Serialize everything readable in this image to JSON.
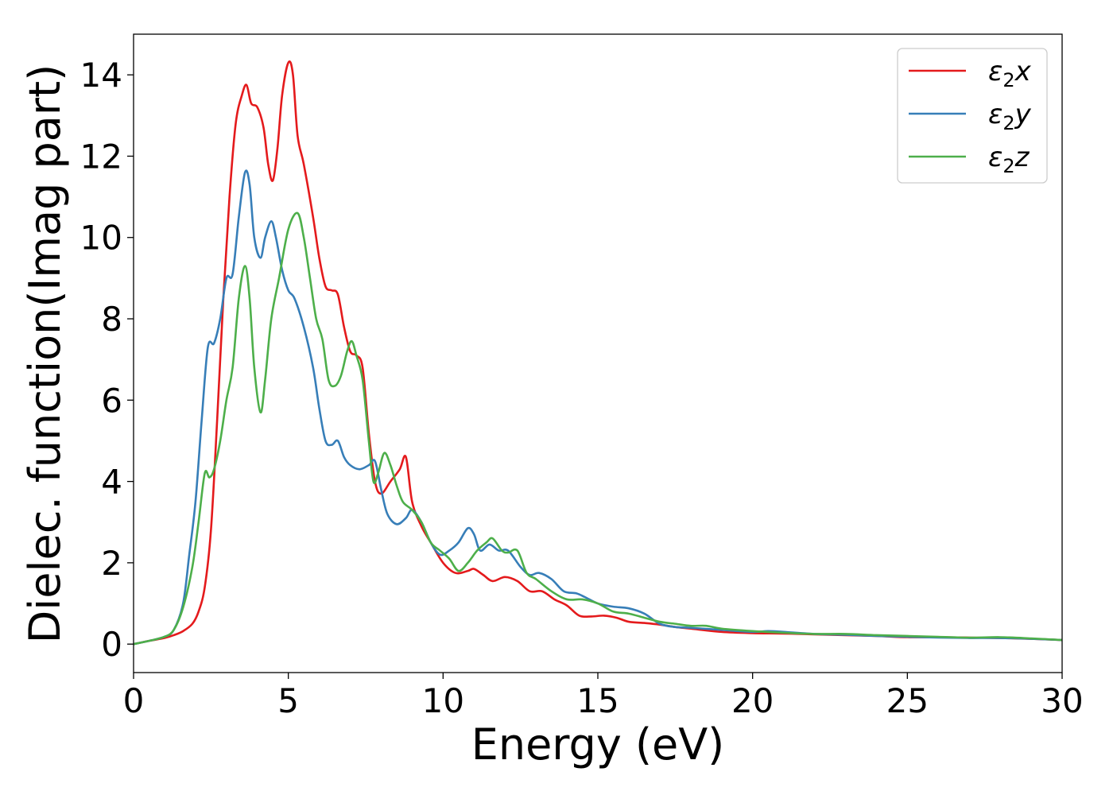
{
  "chart_data": {
    "type": "line",
    "xlabel": "Energy (eV)",
    "ylabel": "Dielec. function(Imag part)",
    "xlim": [
      0,
      30
    ],
    "ylim": [
      -0.7,
      15
    ],
    "xticks": [
      0,
      5,
      10,
      15,
      20,
      25,
      30
    ],
    "yticks": [
      0,
      2,
      4,
      6,
      8,
      10,
      12,
      14
    ],
    "grid": false,
    "legend_position": "top-right",
    "series": [
      {
        "name": "ε₂x",
        "legend": {
          "base": "ε",
          "sub": "2",
          "suffix": "x"
        },
        "color": "#e41a1c",
        "x": [
          0,
          0.5,
          1,
          1.3,
          1.6,
          1.9,
          2.1,
          2.3,
          2.5,
          2.7,
          2.9,
          3.1,
          3.3,
          3.5,
          3.65,
          3.8,
          4.0,
          4.2,
          4.35,
          4.5,
          4.65,
          4.8,
          5.0,
          5.15,
          5.3,
          5.5,
          5.8,
          6.0,
          6.2,
          6.4,
          6.6,
          6.8,
          7.0,
          7.2,
          7.4,
          7.6,
          7.8,
          8.0,
          8.3,
          8.6,
          8.8,
          9.0,
          9.3,
          9.6,
          10.0,
          10.4,
          10.8,
          11.0,
          11.3,
          11.6,
          12.0,
          12.4,
          12.8,
          13.2,
          13.6,
          14.0,
          14.4,
          14.8,
          15.2,
          15.6,
          16.0,
          16.5,
          17.0,
          17.5,
          18.0,
          19.0,
          20.0,
          21.0,
          22.0,
          23.0,
          24.0,
          25.0,
          26.0,
          27.0,
          28.0,
          29.0,
          30.0
        ],
        "y": [
          0.0,
          0.08,
          0.15,
          0.22,
          0.32,
          0.5,
          0.8,
          1.4,
          2.8,
          5.5,
          8.5,
          11.0,
          12.8,
          13.5,
          13.75,
          13.3,
          13.2,
          12.7,
          11.8,
          11.4,
          12.2,
          13.5,
          14.3,
          14.0,
          12.5,
          11.8,
          10.5,
          9.5,
          8.8,
          8.7,
          8.6,
          7.8,
          7.2,
          7.1,
          6.8,
          5.2,
          4.0,
          3.7,
          4.0,
          4.3,
          4.6,
          3.5,
          2.9,
          2.5,
          2.0,
          1.75,
          1.8,
          1.85,
          1.7,
          1.55,
          1.65,
          1.55,
          1.3,
          1.3,
          1.1,
          0.95,
          0.7,
          0.68,
          0.7,
          0.65,
          0.55,
          0.52,
          0.48,
          0.42,
          0.38,
          0.3,
          0.27,
          0.26,
          0.24,
          0.22,
          0.2,
          0.17,
          0.17,
          0.16,
          0.15,
          0.13,
          0.1
        ]
      },
      {
        "name": "ε₂y",
        "legend": {
          "base": "ε",
          "sub": "2",
          "suffix": "y"
        },
        "color": "#377eb8",
        "x": [
          0,
          0.5,
          1,
          1.3,
          1.6,
          1.8,
          2.0,
          2.2,
          2.4,
          2.6,
          2.8,
          3.0,
          3.2,
          3.4,
          3.6,
          3.75,
          3.9,
          4.1,
          4.25,
          4.45,
          4.6,
          4.8,
          5.0,
          5.2,
          5.5,
          5.8,
          6.0,
          6.2,
          6.4,
          6.6,
          6.8,
          7.0,
          7.3,
          7.6,
          7.8,
          8.0,
          8.2,
          8.5,
          8.8,
          9.0,
          9.3,
          9.6,
          9.9,
          10.2,
          10.5,
          10.8,
          11.0,
          11.2,
          11.5,
          11.8,
          12.1,
          12.5,
          12.8,
          13.1,
          13.5,
          13.9,
          14.3,
          14.6,
          15.0,
          15.5,
          16.0,
          16.5,
          17.0,
          17.5,
          18.0,
          19.0,
          20.0,
          20.5,
          21.0,
          22.0,
          23.0,
          24.0,
          25.0,
          26.0,
          27.0,
          28.0,
          29.0,
          30.0
        ],
        "y": [
          0.0,
          0.08,
          0.18,
          0.35,
          1.0,
          2.2,
          3.5,
          5.5,
          7.3,
          7.4,
          8.0,
          9.0,
          9.1,
          10.5,
          11.6,
          11.3,
          10.0,
          9.5,
          10.0,
          10.4,
          10.0,
          9.2,
          8.7,
          8.5,
          7.8,
          6.8,
          5.8,
          5.0,
          4.9,
          5.0,
          4.6,
          4.4,
          4.3,
          4.4,
          4.5,
          3.8,
          3.2,
          2.95,
          3.1,
          3.3,
          3.0,
          2.5,
          2.2,
          2.3,
          2.5,
          2.85,
          2.7,
          2.3,
          2.45,
          2.3,
          2.3,
          1.9,
          1.7,
          1.75,
          1.6,
          1.3,
          1.25,
          1.15,
          1.0,
          0.92,
          0.88,
          0.75,
          0.5,
          0.42,
          0.4,
          0.35,
          0.3,
          0.32,
          0.3,
          0.25,
          0.23,
          0.2,
          0.18,
          0.16,
          0.15,
          0.15,
          0.13,
          0.1
        ]
      },
      {
        "name": "ε₂z",
        "legend": {
          "base": "ε",
          "sub": "2",
          "suffix": "z"
        },
        "color": "#4daf4a",
        "x": [
          0,
          0.5,
          1,
          1.3,
          1.6,
          1.9,
          2.1,
          2.3,
          2.45,
          2.6,
          2.8,
          3.0,
          3.2,
          3.4,
          3.6,
          3.75,
          3.9,
          4.1,
          4.25,
          4.45,
          4.7,
          5.0,
          5.3,
          5.5,
          5.7,
          5.9,
          6.1,
          6.3,
          6.5,
          6.7,
          6.9,
          7.05,
          7.2,
          7.4,
          7.6,
          7.75,
          7.9,
          8.1,
          8.3,
          8.5,
          8.7,
          9.0,
          9.3,
          9.6,
          9.9,
          10.2,
          10.5,
          10.8,
          11.1,
          11.4,
          11.6,
          11.9,
          12.1,
          12.4,
          12.7,
          13.0,
          13.5,
          14.0,
          14.5,
          15.0,
          15.5,
          16.0,
          16.5,
          17.0,
          17.5,
          18.0,
          18.5,
          19.0,
          20.0,
          21.0,
          22.0,
          23.0,
          24.0,
          25.0,
          26.0,
          27.0,
          28.0,
          29.0,
          30.0
        ],
        "y": [
          0.0,
          0.08,
          0.18,
          0.35,
          0.9,
          1.9,
          3.0,
          4.2,
          4.1,
          4.3,
          5.0,
          6.0,
          6.8,
          8.5,
          9.3,
          8.5,
          6.8,
          5.7,
          6.5,
          8.0,
          9.0,
          10.2,
          10.6,
          10.0,
          9.0,
          8.0,
          7.5,
          6.5,
          6.35,
          6.6,
          7.2,
          7.45,
          7.1,
          6.5,
          5.0,
          4.0,
          4.2,
          4.7,
          4.4,
          3.9,
          3.5,
          3.3,
          3.0,
          2.5,
          2.3,
          2.1,
          1.8,
          2.0,
          2.3,
          2.5,
          2.6,
          2.3,
          2.25,
          2.3,
          1.75,
          1.6,
          1.3,
          1.1,
          1.1,
          1.0,
          0.8,
          0.75,
          0.65,
          0.55,
          0.5,
          0.45,
          0.45,
          0.38,
          0.32,
          0.28,
          0.25,
          0.25,
          0.22,
          0.2,
          0.18,
          0.16,
          0.17,
          0.14,
          0.1
        ]
      }
    ]
  }
}
